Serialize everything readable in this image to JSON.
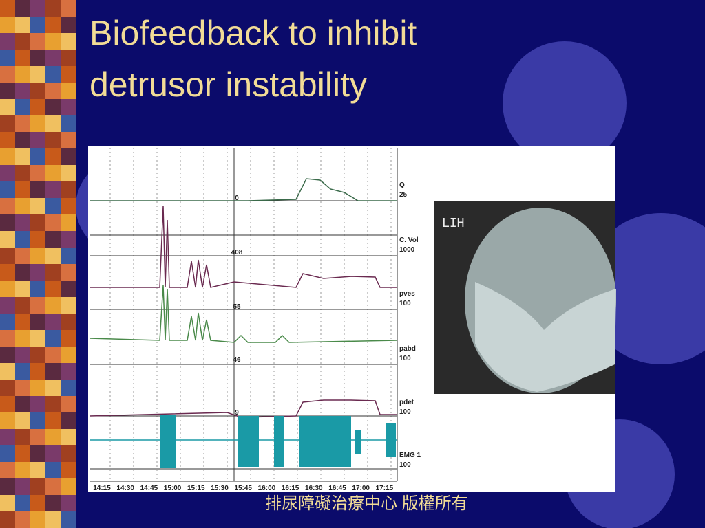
{
  "slide": {
    "title": [
      "Biofeedback to inhibit",
      "detrusor instability"
    ],
    "footer": "排尿障礙治療中心 版權所有",
    "figure": {
      "channels": [
        {
          "name": "Q",
          "scale": "25"
        },
        {
          "name": "C. Vol",
          "scale": "1000"
        },
        {
          "name": "pves",
          "scale": "100"
        },
        {
          "name": "pabd",
          "scale": "100"
        },
        {
          "name": "pdet",
          "scale": "100"
        },
        {
          "name": "EMG 1",
          "scale": "100"
        }
      ],
      "readings": [
        "0",
        "408",
        "55",
        "46",
        "9"
      ],
      "times": [
        "14:15",
        "14:30",
        "14:45",
        "15:00",
        "15:15",
        "15:30",
        "15:45",
        "16:00",
        "16:15",
        "16:30",
        "16:45",
        "17:00",
        "17:15"
      ],
      "image_label": "LIH"
    }
  }
}
